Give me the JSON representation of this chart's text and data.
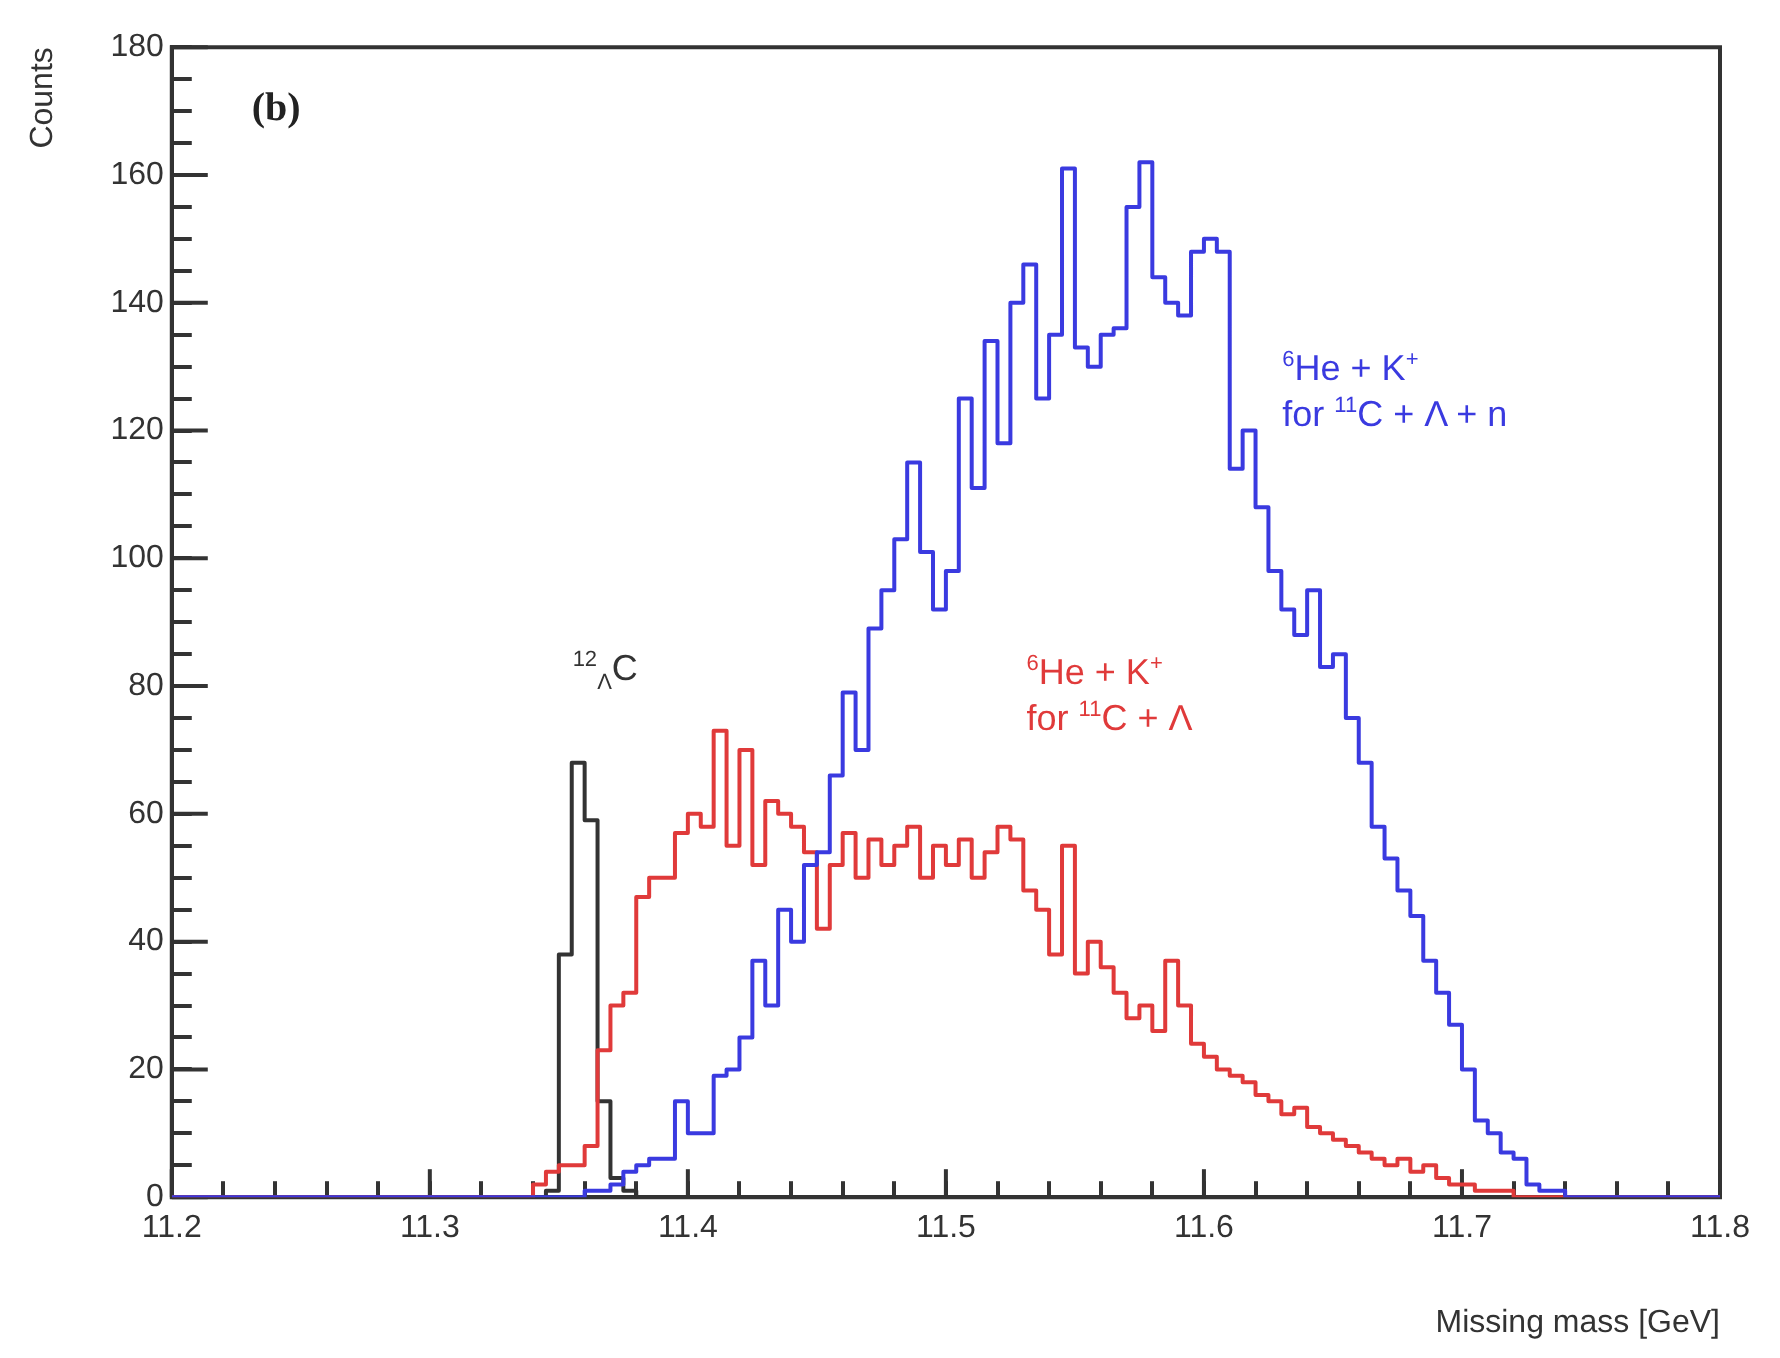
{
  "chart_data": {
    "type": "histogram",
    "xlabel": "Missing mass [GeV]",
    "ylabel": "Counts",
    "bins": [
      11.2,
      11.34,
      11.345,
      11.35,
      11.355,
      11.36,
      11.365,
      11.37,
      11.375,
      11.38,
      11.385,
      11.39,
      11.395,
      11.4,
      11.405,
      11.41,
      11.415,
      11.42,
      11.425,
      11.43,
      11.435,
      11.44,
      11.445,
      11.45,
      11.455,
      11.46,
      11.465,
      11.47,
      11.475,
      11.48,
      11.485,
      11.49,
      11.495,
      11.5,
      11.505,
      11.51,
      11.515,
      11.52,
      11.525,
      11.53,
      11.535,
      11.54,
      11.545,
      11.55,
      11.555,
      11.56,
      11.565,
      11.57,
      11.575,
      11.58,
      11.585,
      11.59,
      11.595,
      11.6,
      11.605,
      11.61,
      11.615,
      11.62,
      11.625,
      11.63,
      11.635,
      11.64,
      11.645,
      11.65,
      11.655,
      11.66,
      11.665,
      11.67,
      11.675,
      11.68,
      11.685,
      11.69,
      11.695,
      11.7,
      11.705,
      11.71,
      11.715,
      11.72,
      11.725,
      11.73,
      11.735,
      11.74,
      11.745,
      11.75,
      11.8
    ],
    "series": [
      {
        "name": "$^{6}$He + K$^{+}$\nfor $^{11}$C + Λ + n",
        "color": "#3a3ae0",
        "values": [
          0,
          0,
          0,
          0,
          0,
          1,
          1,
          2,
          4,
          5,
          6,
          6,
          15,
          10,
          10,
          19,
          20,
          25,
          37,
          30,
          45,
          40,
          52,
          54,
          66,
          79,
          70,
          89,
          95,
          103,
          115,
          101,
          92,
          98,
          125,
          111,
          134,
          118,
          140,
          146,
          125,
          135,
          161,
          133,
          130,
          135,
          136,
          155,
          162,
          144,
          140,
          138,
          148,
          150,
          148,
          114,
          120,
          108,
          98,
          92,
          88,
          95,
          83,
          85,
          75,
          68,
          58,
          53,
          48,
          44,
          37,
          32,
          27,
          20,
          12,
          10,
          7,
          6,
          2,
          1,
          1,
          0,
          0,
          0
        ]
      },
      {
        "name": "$^{6}$He + K$^{+}$\nfor $^{11}$C + Λ",
        "color": "#e03a3a",
        "values": [
          0,
          2,
          4,
          5,
          5,
          8,
          23,
          30,
          32,
          47,
          50,
          50,
          57,
          60,
          58,
          73,
          55,
          70,
          52,
          62,
          60,
          58,
          54,
          42,
          52,
          57,
          50,
          56,
          52,
          55,
          58,
          50,
          55,
          52,
          56,
          50,
          54,
          58,
          56,
          48,
          45,
          38,
          55,
          35,
          40,
          36,
          32,
          28,
          30,
          26,
          37,
          30,
          24,
          22,
          20,
          19,
          18,
          16,
          15,
          13,
          14,
          11,
          10,
          9,
          8,
          7,
          6,
          5,
          6,
          4,
          5,
          3,
          2,
          2,
          1,
          1,
          1,
          0,
          0,
          0,
          0,
          0,
          0,
          0
        ]
      },
      {
        "name": "$^{12}$$_{Λ}$C",
        "color": "#333333",
        "values": [
          0,
          0,
          1,
          38,
          68,
          59,
          15,
          3,
          1,
          0,
          0,
          0,
          0,
          0,
          0,
          0,
          0,
          0,
          0,
          0,
          0,
          0,
          0,
          0,
          0,
          0,
          0,
          0,
          0,
          0,
          0,
          0,
          0,
          0,
          0,
          0,
          0,
          0,
          0,
          0,
          0,
          0,
          0,
          0,
          0,
          0,
          0,
          0,
          0,
          0,
          0,
          0,
          0,
          0,
          0,
          0,
          0,
          0,
          0,
          0,
          0,
          0,
          0,
          0,
          0,
          0,
          0,
          0,
          0,
          0,
          0,
          0,
          0,
          0,
          0,
          0,
          0,
          0,
          0,
          0,
          0,
          0,
          0,
          0
        ]
      }
    ],
    "xlim": [
      11.2,
      11.8
    ],
    "ylim": [
      0,
      180
    ],
    "xticks": [
      11.2,
      {
        "value": 11.22,
        "label": null
      },
      {
        "value": 11.24,
        "label": null
      },
      {
        "value": 11.26,
        "label": null
      },
      {
        "value": 11.28,
        "label": null
      },
      11.3,
      {
        "value": 11.32,
        "label": null
      },
      {
        "value": 11.34,
        "label": null
      },
      {
        "value": 11.36,
        "label": null
      },
      {
        "value": 11.38,
        "label": null
      },
      11.4,
      {
        "value": 11.42,
        "label": null
      },
      {
        "value": 11.44,
        "label": null
      },
      {
        "value": 11.46,
        "label": null
      },
      {
        "value": 11.48,
        "label": null
      },
      11.5,
      {
        "value": 11.52,
        "label": null
      },
      {
        "value": 11.54,
        "label": null
      },
      {
        "value": 11.56,
        "label": null
      },
      {
        "value": 11.58,
        "label": null
      },
      11.6,
      {
        "value": 11.62,
        "label": null
      },
      {
        "value": 11.64,
        "label": null
      },
      {
        "value": 11.66,
        "label": null
      },
      {
        "value": 11.68,
        "label": null
      },
      11.7,
      {
        "value": 11.72,
        "label": null
      },
      {
        "value": 11.74,
        "label": null
      },
      {
        "value": 11.76,
        "label": null
      },
      {
        "value": 11.78,
        "label": null
      },
      11.8
    ],
    "yticks": [
      0,
      {
        "value": 5,
        "label": null
      },
      {
        "value": 10,
        "label": null
      },
      {
        "value": 15,
        "label": null
      },
      20,
      {
        "value": 25,
        "label": null
      },
      {
        "value": 30,
        "label": null
      },
      {
        "value": 35,
        "label": null
      },
      40,
      {
        "value": 45,
        "label": null
      },
      {
        "value": 50,
        "label": null
      },
      {
        "value": 55,
        "label": null
      },
      60,
      {
        "value": 65,
        "label": null
      },
      {
        "value": 70,
        "label": null
      },
      {
        "value": 75,
        "label": null
      },
      80,
      {
        "value": 85,
        "label": null
      },
      {
        "value": 90,
        "label": null
      },
      {
        "value": 95,
        "label": null
      },
      100,
      {
        "value": 105,
        "label": null
      },
      {
        "value": 110,
        "label": null
      },
      {
        "value": 115,
        "label": null
      },
      120,
      {
        "value": 125,
        "label": null
      },
      {
        "value": 130,
        "label": null
      },
      {
        "value": 135,
        "label": null
      },
      140,
      {
        "value": 145,
        "label": null
      },
      {
        "value": 150,
        "label": null
      },
      {
        "value": 155,
        "label": null
      },
      160,
      {
        "value": 165,
        "label": null
      },
      {
        "value": 170,
        "label": null
      },
      {
        "value": 175,
        "label": null
      },
      180
    ],
    "annotations": [
      "(b)"
    ]
  }
}
